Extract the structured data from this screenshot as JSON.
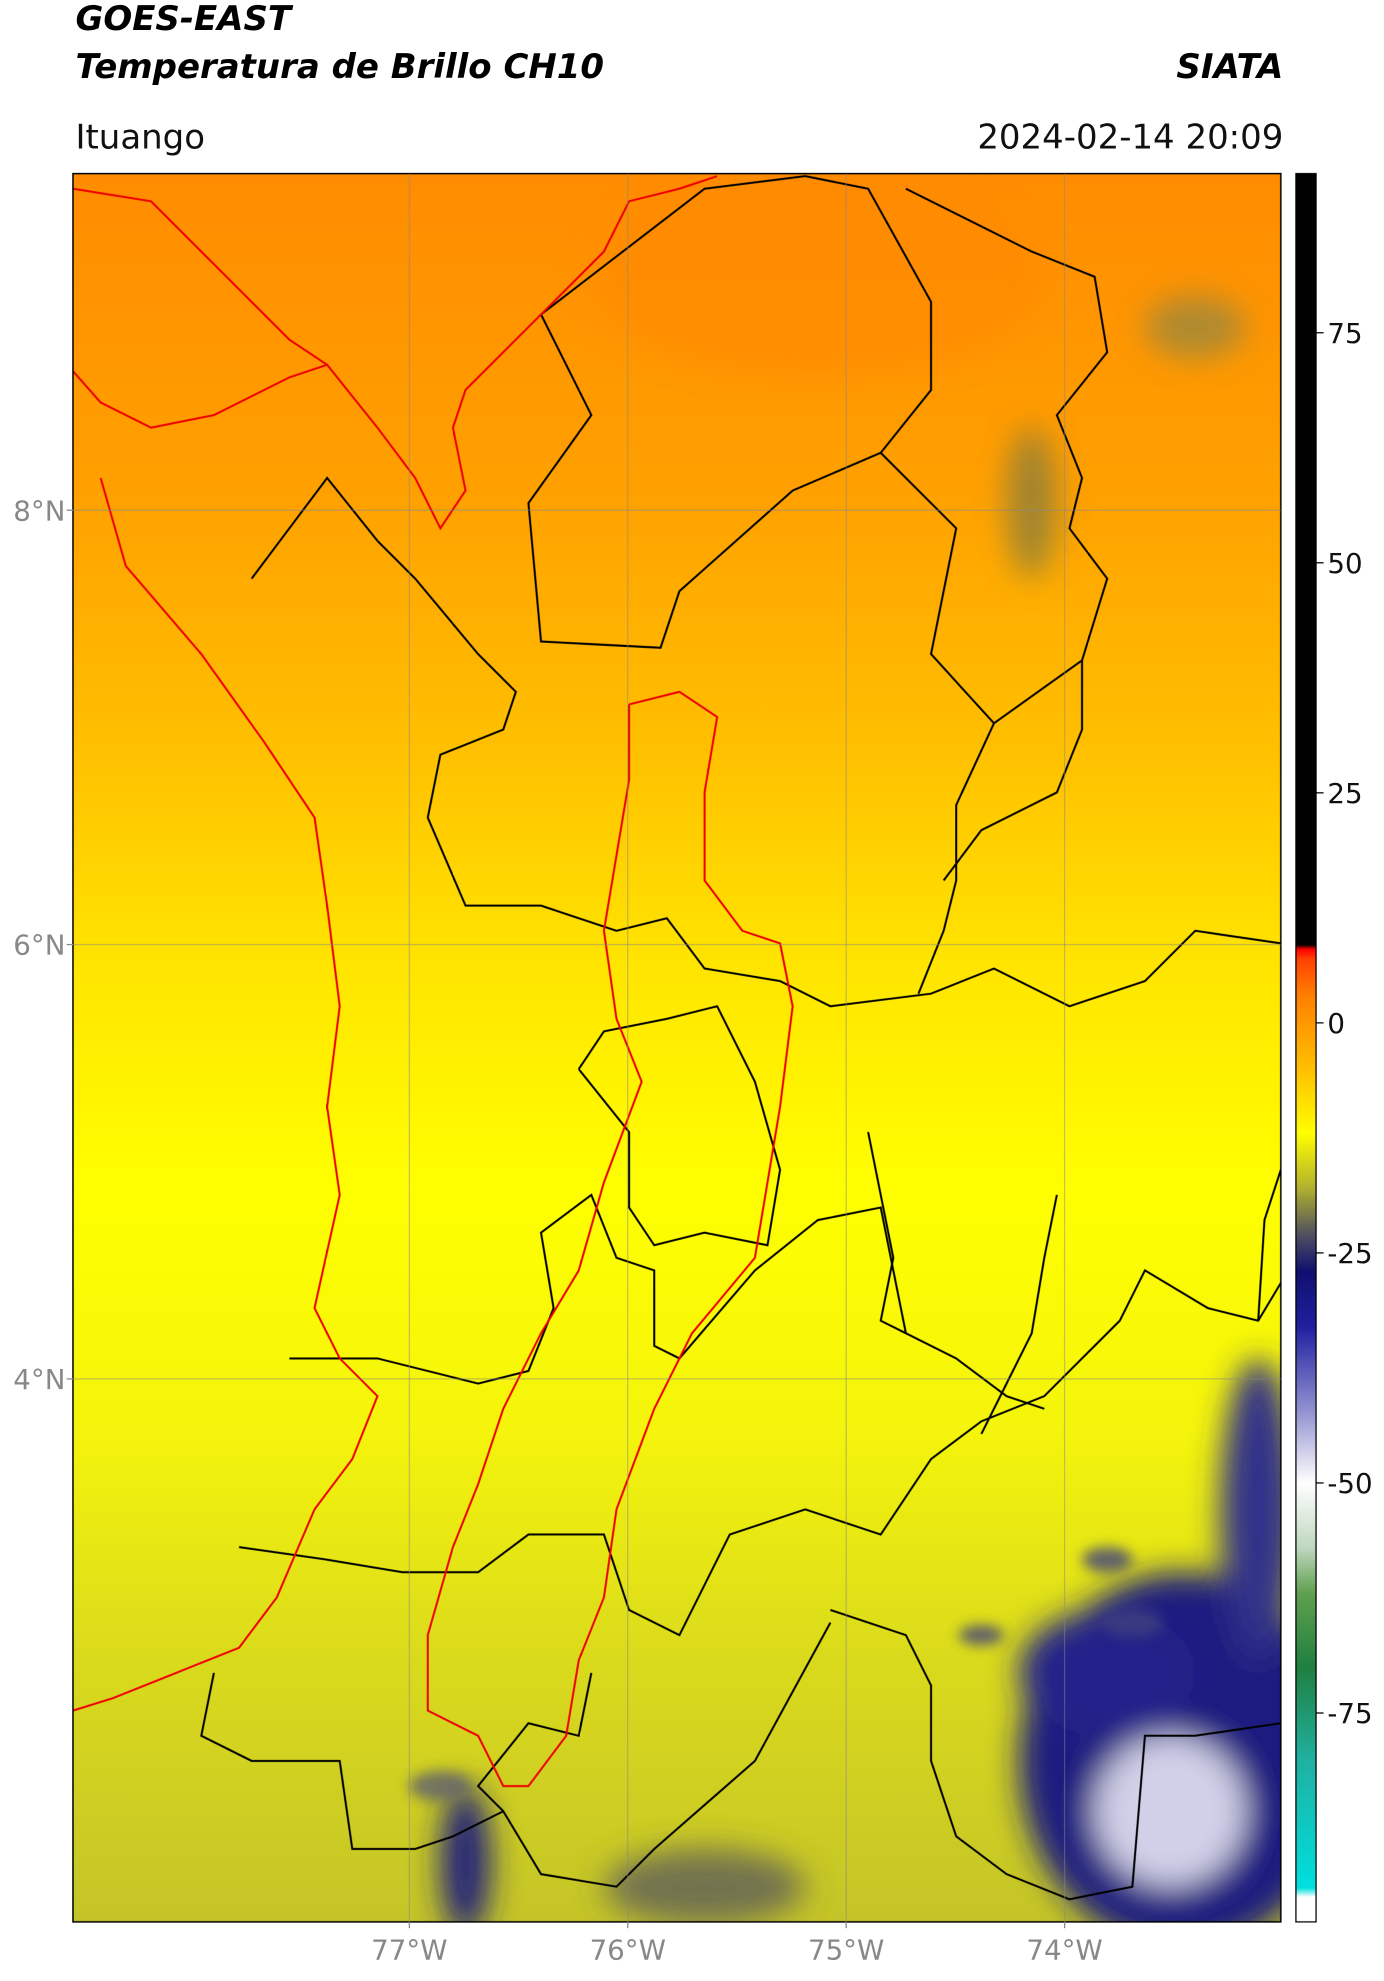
{
  "chart_data": {
    "type": "map",
    "title": "GOES-EAST",
    "subtitle": "Temperatura de Brillo CH10",
    "source": "SIATA",
    "location": "Ituango",
    "timestamp": "2024-02-14 20:09",
    "xlim": [
      -78.54,
      -73.01
    ],
    "ylim": [
      1.5,
      9.55
    ],
    "xticks": [
      {
        "value": -77,
        "label": "77°W"
      },
      {
        "value": -76,
        "label": "76°W"
      },
      {
        "value": -75,
        "label": "75°W"
      },
      {
        "value": -74,
        "label": "74°W"
      }
    ],
    "yticks": [
      {
        "value": 4,
        "label": "4°N"
      },
      {
        "value": 6,
        "label": "6°N"
      },
      {
        "value": 8,
        "label": "8°N"
      }
    ],
    "grid": true,
    "colorbar": {
      "lim": [
        -97.7,
        92.3
      ],
      "ticks": [
        -75,
        -50,
        -25,
        0,
        25,
        50,
        75
      ],
      "colormap": [
        {
          "value": -97.7,
          "color": "#ffffff"
        },
        {
          "value": -95,
          "color": "#ffffff"
        },
        {
          "value": -94,
          "color": "#00e0e0"
        },
        {
          "value": -80,
          "color": "#20b0a0"
        },
        {
          "value": -70,
          "color": "#208040"
        },
        {
          "value": -62,
          "color": "#60a050"
        },
        {
          "value": -57,
          "color": "#c0d8c0"
        },
        {
          "value": -50,
          "color": "#ffffff"
        },
        {
          "value": -42,
          "color": "#9090d0"
        },
        {
          "value": -33,
          "color": "#2020a0"
        },
        {
          "value": -27,
          "color": "#101070"
        },
        {
          "value": -23,
          "color": "#505060"
        },
        {
          "value": -18,
          "color": "#b0b030"
        },
        {
          "value": -12,
          "color": "#ffff00"
        },
        {
          "value": -5,
          "color": "#ffc000"
        },
        {
          "value": 3,
          "color": "#ff8000"
        },
        {
          "value": 7,
          "color": "#ff4000"
        },
        {
          "value": 8,
          "color": "#ff0000"
        },
        {
          "value": 8.5,
          "color": "#000000"
        },
        {
          "value": 92.3,
          "color": "#000000"
        }
      ]
    }
  }
}
